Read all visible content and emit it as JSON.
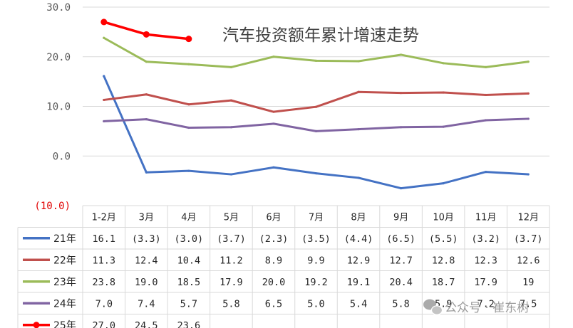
{
  "chart_data": {
    "type": "line",
    "title": "汽车投资额年累计增速走势",
    "categories": [
      "1-2月",
      "3月",
      "4月",
      "5月",
      "6月",
      "7月",
      "8月",
      "9月",
      "10月",
      "11月",
      "12月"
    ],
    "y_ticks": [
      "30.0",
      "20.0",
      "10.0",
      "0.0",
      "(10.0)"
    ],
    "ylim": [
      -10,
      30
    ],
    "grid": true,
    "legend_placement": "data-table-left",
    "series": [
      {
        "name": "21年",
        "color": "#4472c4",
        "marker": false,
        "values": [
          16.1,
          -3.3,
          -3.0,
          -3.7,
          -2.3,
          -3.5,
          -4.4,
          -6.5,
          -5.5,
          -3.2,
          -3.7
        ],
        "labels": [
          "16.1",
          "(3.3)",
          "(3.0)",
          "(3.7)",
          "(2.3)",
          "(3.5)",
          "(4.4)",
          "(6.5)",
          "(5.5)",
          "(3.2)",
          "(3.7)"
        ]
      },
      {
        "name": "22年",
        "color": "#c0504d",
        "marker": false,
        "values": [
          11.3,
          12.4,
          10.4,
          11.2,
          8.9,
          9.9,
          12.9,
          12.7,
          12.8,
          12.3,
          12.6
        ],
        "labels": [
          "11.3",
          "12.4",
          "10.4",
          "11.2",
          "8.9",
          "9.9",
          "12.9",
          "12.7",
          "12.8",
          "12.3",
          "12.6"
        ]
      },
      {
        "name": "23年",
        "color": "#9bbb59",
        "marker": false,
        "values": [
          23.8,
          19.0,
          18.5,
          17.9,
          20.0,
          19.2,
          19.1,
          20.4,
          18.7,
          17.9,
          19
        ],
        "labels": [
          "23.8",
          "19.0",
          "18.5",
          "17.9",
          "20.0",
          "19.2",
          "19.1",
          "20.4",
          "18.7",
          "17.9",
          "19"
        ]
      },
      {
        "name": "24年",
        "color": "#8064a2",
        "marker": false,
        "values": [
          7.0,
          7.4,
          5.7,
          5.8,
          6.5,
          5.0,
          5.4,
          5.8,
          5.9,
          7.2,
          7.5
        ],
        "labels": [
          "7.0",
          "7.4",
          "5.7",
          "5.8",
          "6.5",
          "5.0",
          "5.4",
          "5.8",
          "5.9",
          "7.2",
          "7.5"
        ]
      },
      {
        "name": "25年",
        "color": "#ff0000",
        "marker": true,
        "values": [
          27.0,
          24.5,
          23.6,
          null,
          null,
          null,
          null,
          null,
          null,
          null,
          null
        ],
        "labels": [
          "27.0",
          "24.5",
          "23.6",
          "",
          "",
          "",
          "",
          "",
          "",
          "",
          ""
        ]
      }
    ]
  },
  "watermark": {
    "text": "公众号 · 崔东树"
  }
}
